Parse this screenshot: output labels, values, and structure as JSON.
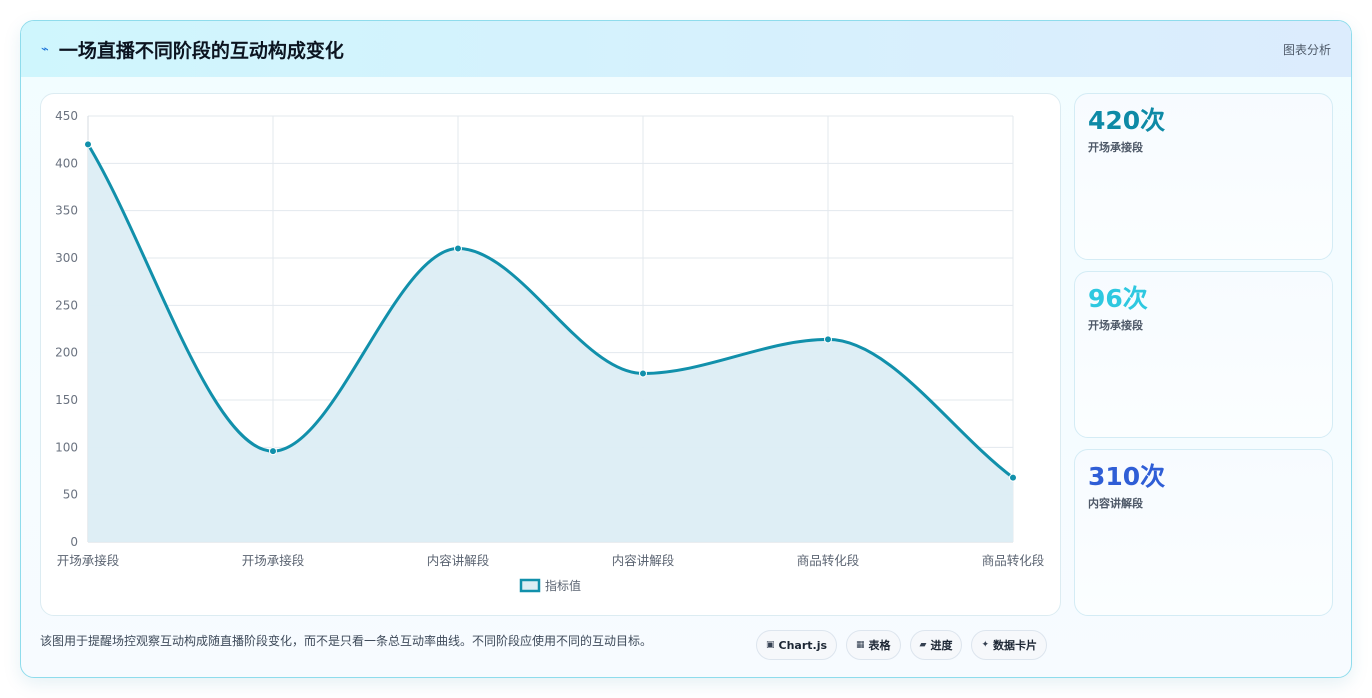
{
  "header": {
    "icon": "lightning-icon",
    "title": "一场直播不同阶段的互动构成变化",
    "tag": "图表分析"
  },
  "chart_data": {
    "type": "line",
    "smooth": true,
    "filled": true,
    "categories": [
      "开场承接段",
      "开场承接段",
      "内容讲解段",
      "内容讲解段",
      "商品转化段",
      "商品转化段"
    ],
    "series": [
      {
        "name": "指标值",
        "values": [
          420,
          96,
          310,
          178,
          214,
          68
        ]
      }
    ],
    "ylim": [
      0,
      450
    ],
    "yticks": [
      0,
      50,
      100,
      150,
      200,
      250,
      300,
      350,
      400,
      450
    ],
    "grid": true,
    "legend": "bottom",
    "colors": {
      "line": "#1190ab",
      "fill": "#dcedf4"
    }
  },
  "stats": [
    {
      "value": "420次",
      "label": "开场承接段",
      "color": "#0e8aa6"
    },
    {
      "value": "96次",
      "label": "开场承接段",
      "color": "#2ec8e0"
    },
    {
      "value": "310次",
      "label": "内容讲解段",
      "color": "#2f5ed6"
    }
  ],
  "footer": {
    "description": "该图用于提醒场控观察互动构成随直播阶段变化，而不是只看一条总互动率曲线。不同阶段应使用不同的互动目标。",
    "pills": [
      {
        "icon": "chart-icon",
        "glyph": "▣",
        "label": "Chart.js"
      },
      {
        "icon": "table-icon",
        "glyph": "▦",
        "label": "表格"
      },
      {
        "icon": "progress-icon",
        "glyph": "▰",
        "label": "进度"
      },
      {
        "icon": "sparkle-icon",
        "glyph": "✦",
        "label": "数据卡片"
      }
    ]
  }
}
